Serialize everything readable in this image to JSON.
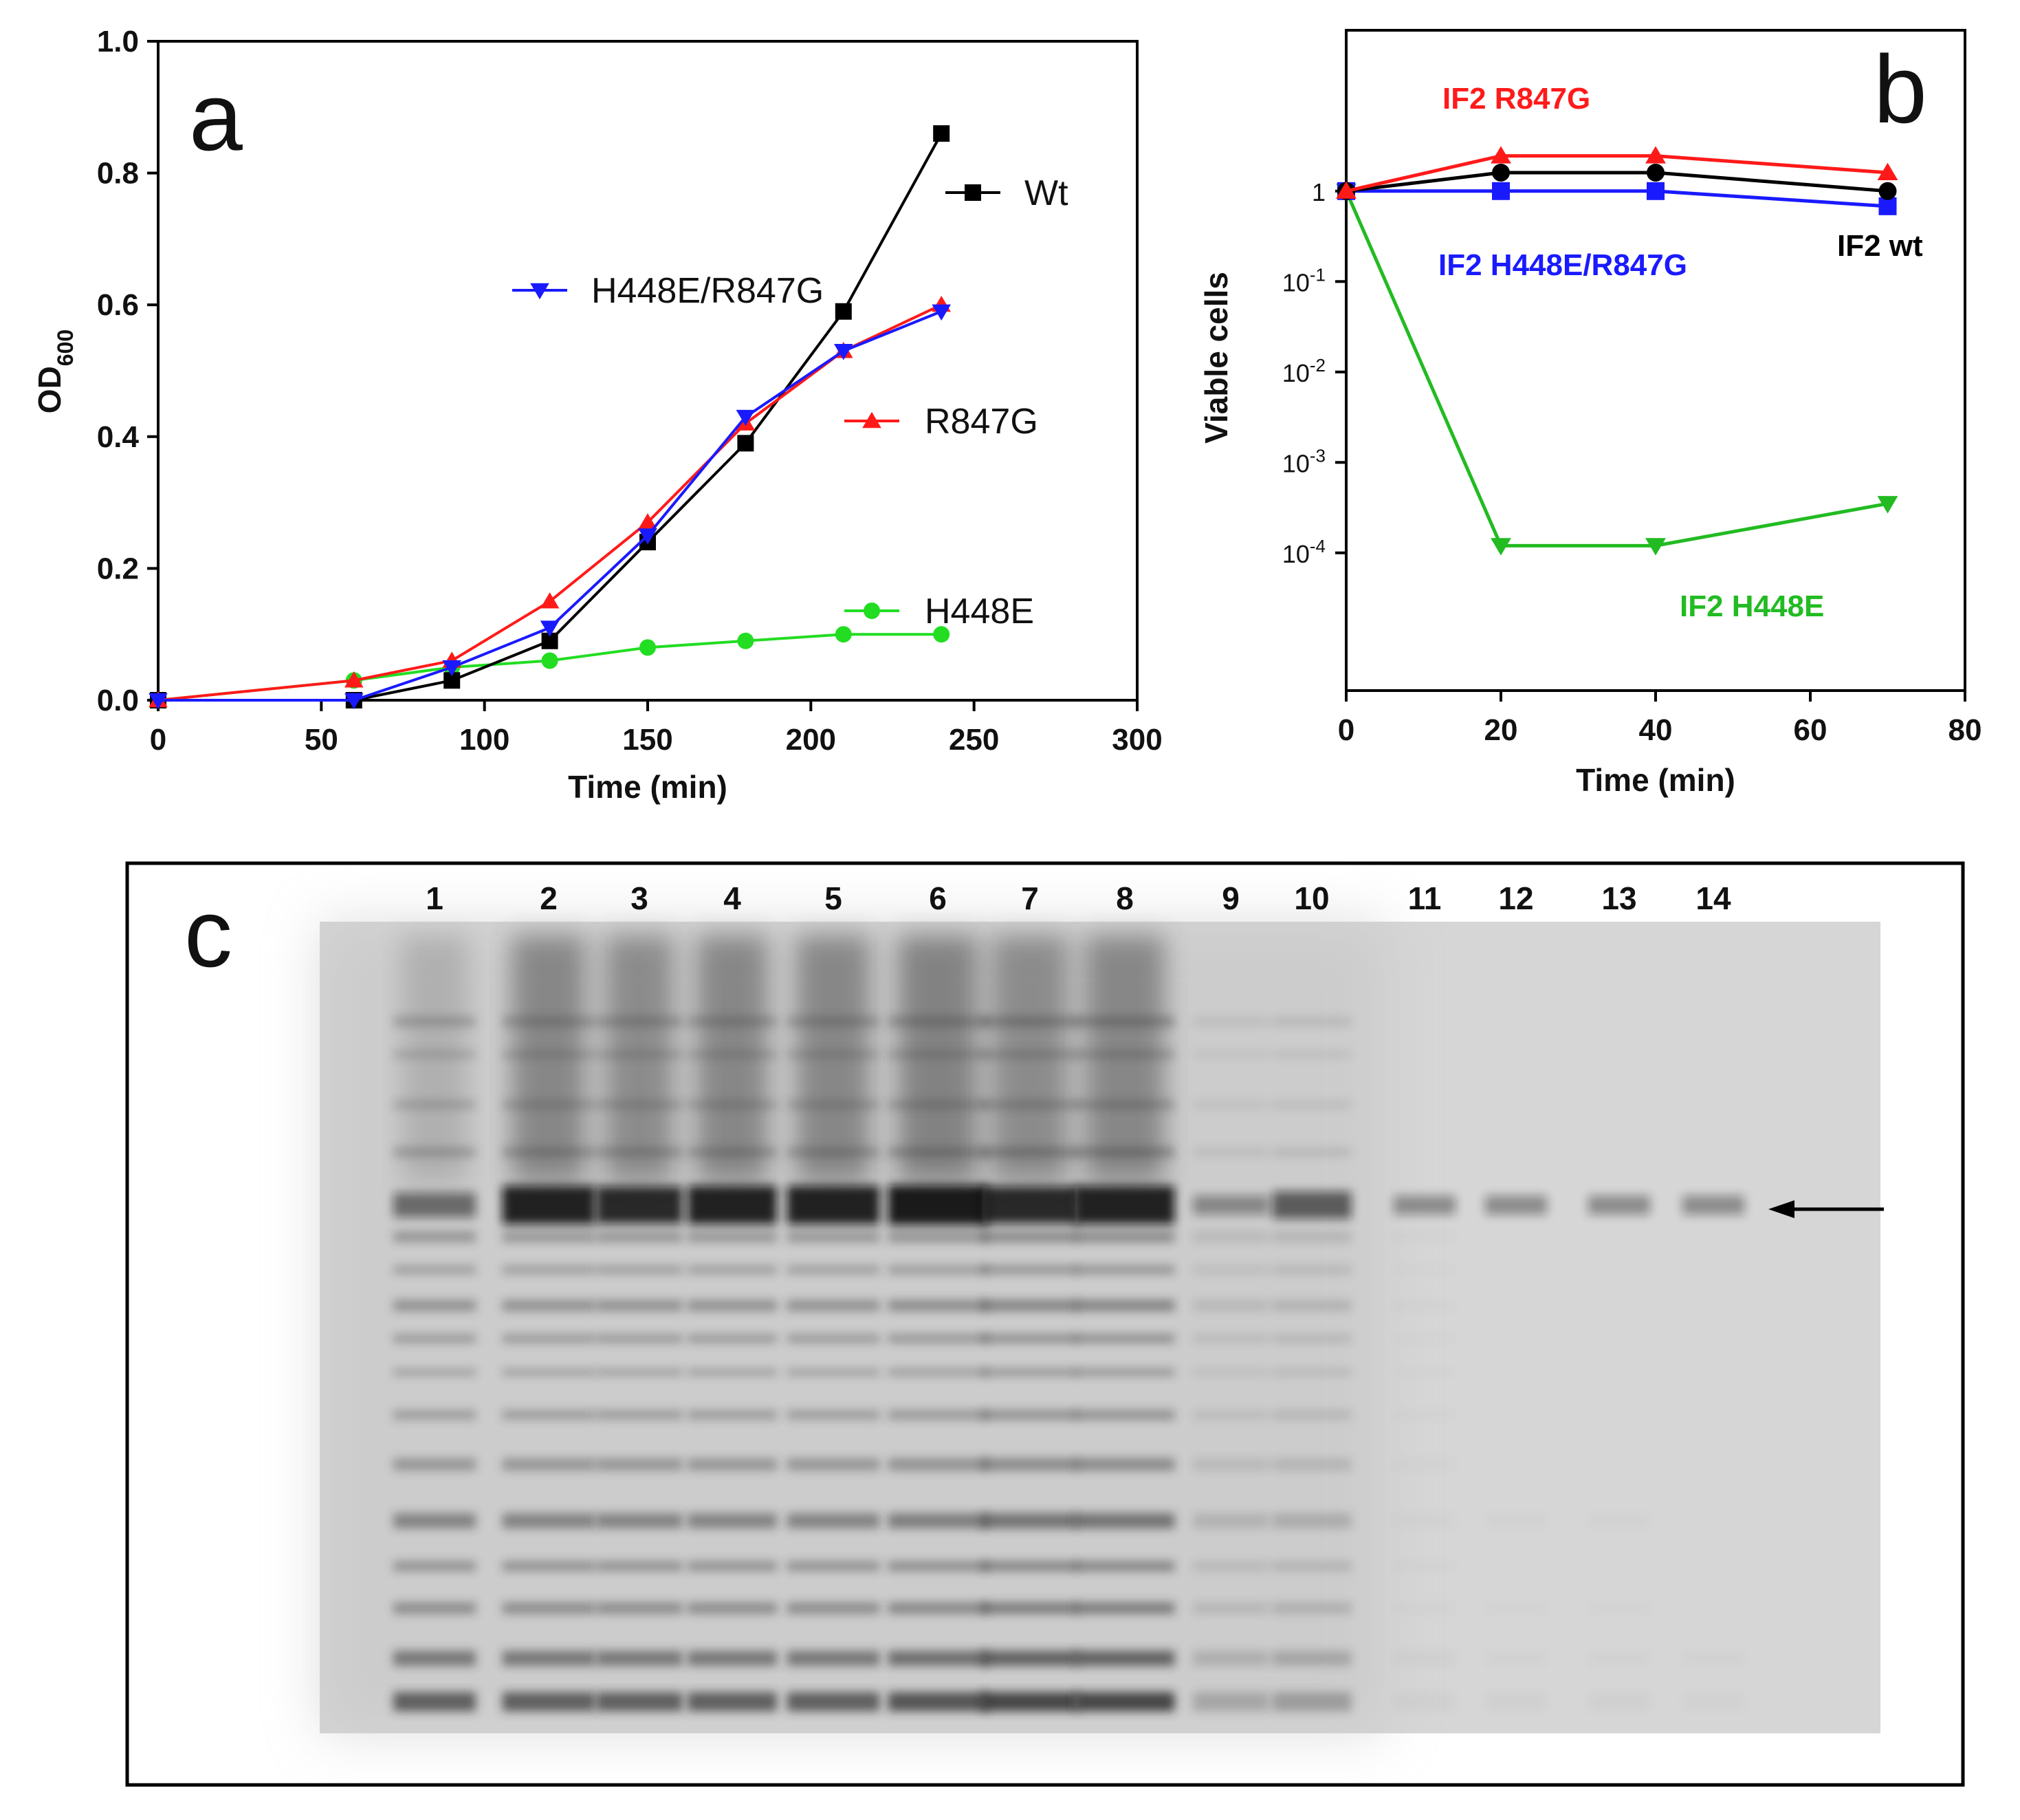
{
  "chart_data": [
    {
      "panel": "a",
      "type": "line",
      "title": "",
      "xlabel": "Time (min)",
      "ylabel": "OD",
      "ylabel_subscript": "600",
      "xlim": [
        0,
        300
      ],
      "ylim": [
        0,
        1.0
      ],
      "xticks": [
        0,
        50,
        100,
        150,
        200,
        250,
        300
      ],
      "xtick_labels": [
        "0",
        "50",
        "100",
        "150",
        "200",
        "250",
        "300"
      ],
      "yticks": [
        0,
        0.2,
        0.4,
        0.6,
        0.8,
        1.0
      ],
      "ytick_labels": [
        "0.0",
        "0.2",
        "0.4",
        "0.6",
        "0.8",
        "1.0"
      ],
      "grid": false,
      "series": [
        {
          "name": "Wt",
          "color": "#000000",
          "marker": "square",
          "x": [
            0,
            60,
            90,
            120,
            150,
            180,
            210,
            240
          ],
          "y": [
            0.0,
            0.0,
            0.03,
            0.09,
            0.24,
            0.39,
            0.59,
            0.86
          ]
        },
        {
          "name": "H448E/R847G",
          "color": "#1a1aff",
          "marker": "triangle-down",
          "x": [
            0,
            60,
            90,
            120,
            150,
            180,
            210,
            240
          ],
          "y": [
            0.0,
            0.0,
            0.05,
            0.11,
            0.25,
            0.43,
            0.53,
            0.59
          ]
        },
        {
          "name": "R847G",
          "color": "#ff1a1a",
          "marker": "triangle-up",
          "x": [
            0,
            60,
            90,
            120,
            150,
            180,
            210,
            240
          ],
          "y": [
            0.0,
            0.03,
            0.06,
            0.15,
            0.27,
            0.42,
            0.53,
            0.6
          ]
        },
        {
          "name": "H448E",
          "color": "#22dd22",
          "marker": "circle",
          "x": [
            0,
            60,
            90,
            120,
            150,
            180,
            210,
            240
          ],
          "y": [
            0.0,
            0.03,
            0.05,
            0.06,
            0.08,
            0.09,
            0.1,
            0.1
          ]
        }
      ],
      "legend": [
        {
          "name": "Wt",
          "text": "Wt"
        },
        {
          "name": "H448E/R847G",
          "text": "H448E/R847G"
        },
        {
          "name": "R847G",
          "text": "R847G"
        },
        {
          "name": "H448E",
          "text": "H448E"
        }
      ]
    },
    {
      "panel": "b",
      "type": "line",
      "title": "",
      "xlabel": "Time (min)",
      "ylabel": "Viable cells",
      "yscale": "log",
      "xlim": [
        0,
        80
      ],
      "ylim": [
        3e-06,
        60
      ],
      "xticks": [
        0,
        20,
        40,
        60,
        80
      ],
      "xtick_labels": [
        "0",
        "20",
        "40",
        "60",
        "80"
      ],
      "yticks": [
        1,
        0.1,
        0.01,
        0.001,
        0.0001
      ],
      "ytick_labels": [
        {
          "base": "1",
          "exp": ""
        },
        {
          "base": "10",
          "exp": "-1"
        },
        {
          "base": "10",
          "exp": "-2"
        },
        {
          "base": "10",
          "exp": "-3"
        },
        {
          "base": "10",
          "exp": "-4"
        }
      ],
      "grid": false,
      "series": [
        {
          "name": "IF2 R847G",
          "color": "#ff1a1a",
          "marker": "triangle-up",
          "x": [
            0,
            20,
            40,
            70
          ],
          "y": [
            1.0,
            2.45,
            2.45,
            1.6
          ]
        },
        {
          "name": "IF2 wt",
          "color": "#000000",
          "marker": "circle",
          "x": [
            0,
            20,
            40,
            70
          ],
          "y": [
            1.0,
            1.6,
            1.6,
            1.0
          ]
        },
        {
          "name": "IF2 H448E/R847G",
          "color": "#1a1aff",
          "marker": "square",
          "x": [
            0,
            20,
            40,
            70
          ],
          "y": [
            1.0,
            1.0,
            1.0,
            0.68
          ]
        },
        {
          "name": "IF2 H448E",
          "color": "#22bb22",
          "marker": "triangle-down",
          "x": [
            0,
            20,
            40,
            70
          ],
          "y": [
            1.0,
            0.00012,
            0.00012,
            0.00035
          ]
        }
      ],
      "annotations": [
        {
          "name": "IF2 R847G",
          "text": "IF2 R847G",
          "color": "#ff1a1a"
        },
        {
          "name": "IF2 H448E/R847G",
          "text": "IF2 H448E/R847G",
          "color": "#1a1aff"
        },
        {
          "name": "IF2 wt",
          "text": "IF2 wt",
          "color": "#000000"
        },
        {
          "name": "IF2 H448E",
          "text": "IF2 H448E",
          "color": "#22bb22"
        }
      ]
    }
  ],
  "panel_a": {
    "letter": "a"
  },
  "panel_b": {
    "letter": "b"
  },
  "panel_c": {
    "letter": "c",
    "lane_labels": [
      "1",
      "2",
      "3",
      "4",
      "5",
      "6",
      "7",
      "8",
      "9",
      "10",
      "11",
      "12",
      "13",
      "14"
    ],
    "lane_intensity": [
      0.35,
      0.85,
      0.8,
      0.85,
      0.85,
      0.9,
      0.8,
      0.85,
      0.15,
      0.45,
      0.15,
      0.15,
      0.15,
      0.15
    ],
    "lane_load": [
      1.0,
      1.0,
      1.0,
      1.0,
      1.0,
      1.1,
      1.25,
      1.25,
      0.35,
      0.45,
      0.05,
      0.04,
      0.04,
      0.03
    ],
    "arrow": "target band"
  },
  "colors": {
    "black": "#000000",
    "blue": "#1a1aff",
    "red": "#ff1a1a",
    "green_a": "#22dd22",
    "green_b": "#22bb22"
  }
}
